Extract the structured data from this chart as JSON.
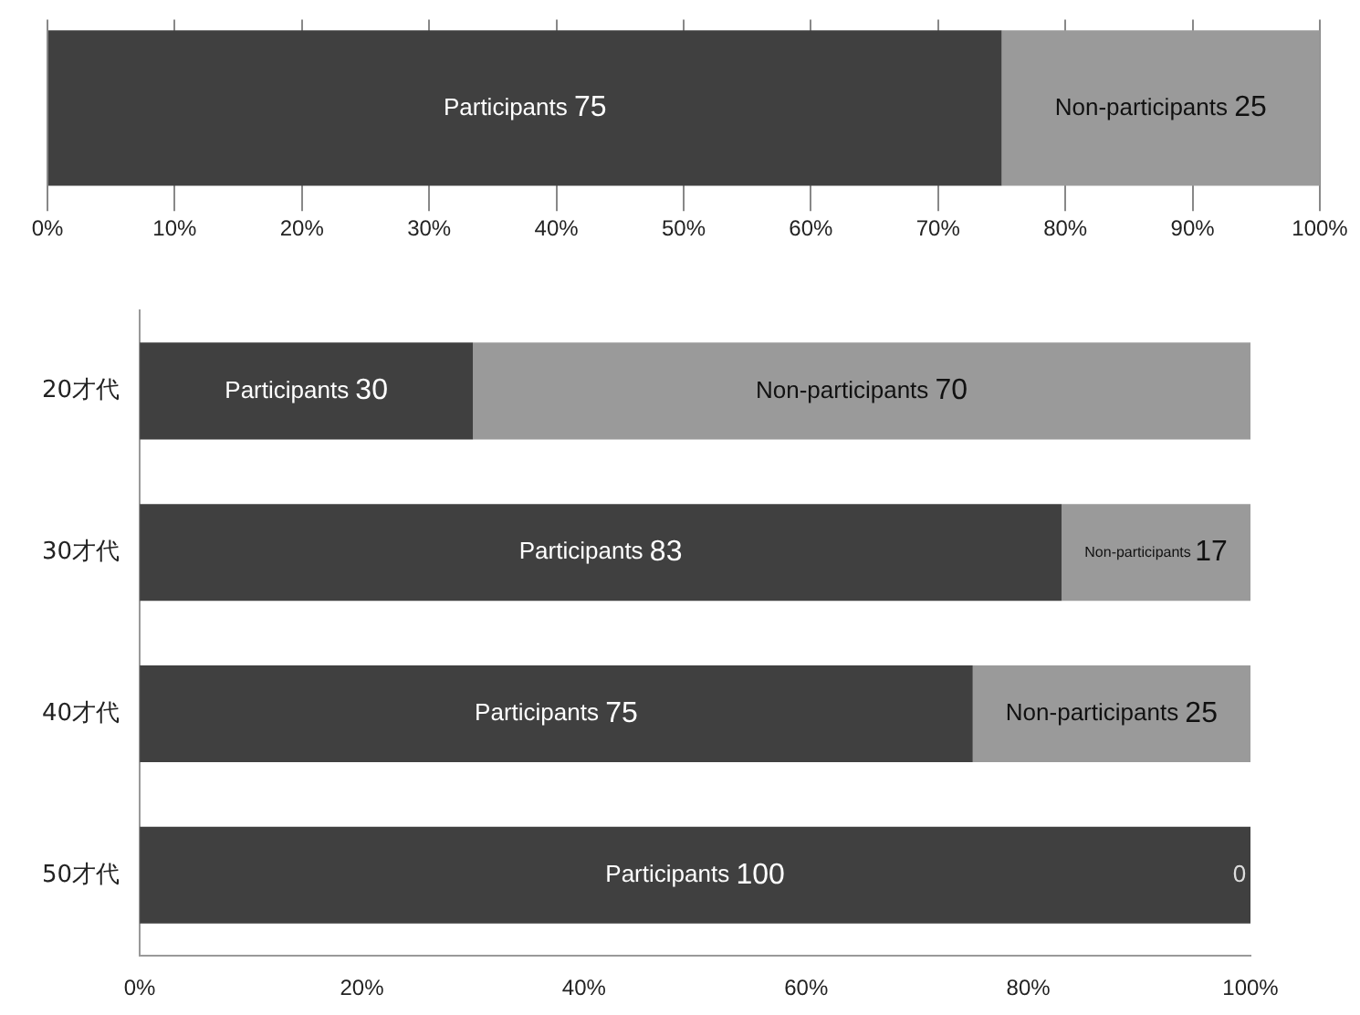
{
  "chart_data": [
    {
      "type": "bar",
      "orientation": "horizontal",
      "stacked": true,
      "categories": [
        null
      ],
      "series": [
        {
          "name": "Participants",
          "color": "#404040",
          "values": [
            75
          ]
        },
        {
          "name": "Non-participants",
          "color": "#9a9a9a",
          "values": [
            25
          ]
        }
      ],
      "xlim": [
        0,
        100
      ],
      "xticks": [
        {
          "value": 0,
          "label": "0%"
        },
        {
          "value": 10,
          "label": "10%"
        },
        {
          "value": 20,
          "label": "20%"
        },
        {
          "value": 30,
          "label": "30%"
        },
        {
          "value": 40,
          "label": "40%"
        },
        {
          "value": 50,
          "label": "50%"
        },
        {
          "value": 60,
          "label": "60%"
        },
        {
          "value": 70,
          "label": "70%"
        },
        {
          "value": 80,
          "label": "80%"
        },
        {
          "value": 90,
          "label": "90%"
        },
        {
          "value": 100,
          "label": "100%"
        }
      ],
      "grid": "x",
      "legend": false,
      "data_labels": true
    },
    {
      "type": "bar",
      "orientation": "horizontal",
      "stacked": true,
      "categories": [
        "20才代",
        "30才代",
        "40才代",
        "50才代"
      ],
      "series": [
        {
          "name": "Participants",
          "color": "#404040",
          "values": [
            30,
            83,
            75,
            100
          ]
        },
        {
          "name": "Non-participants",
          "color": "#9a9a9a",
          "values": [
            70,
            17,
            25,
            0
          ]
        }
      ],
      "xlim": [
        0,
        100
      ],
      "xticks": [
        {
          "value": 0,
          "label": "0%"
        },
        {
          "value": 20,
          "label": "20%"
        },
        {
          "value": 40,
          "label": "40%"
        },
        {
          "value": 60,
          "label": "60%"
        },
        {
          "value": 80,
          "label": "80%"
        },
        {
          "value": 100,
          "label": "100%"
        }
      ],
      "grid": false,
      "legend": false,
      "data_labels": true
    }
  ]
}
